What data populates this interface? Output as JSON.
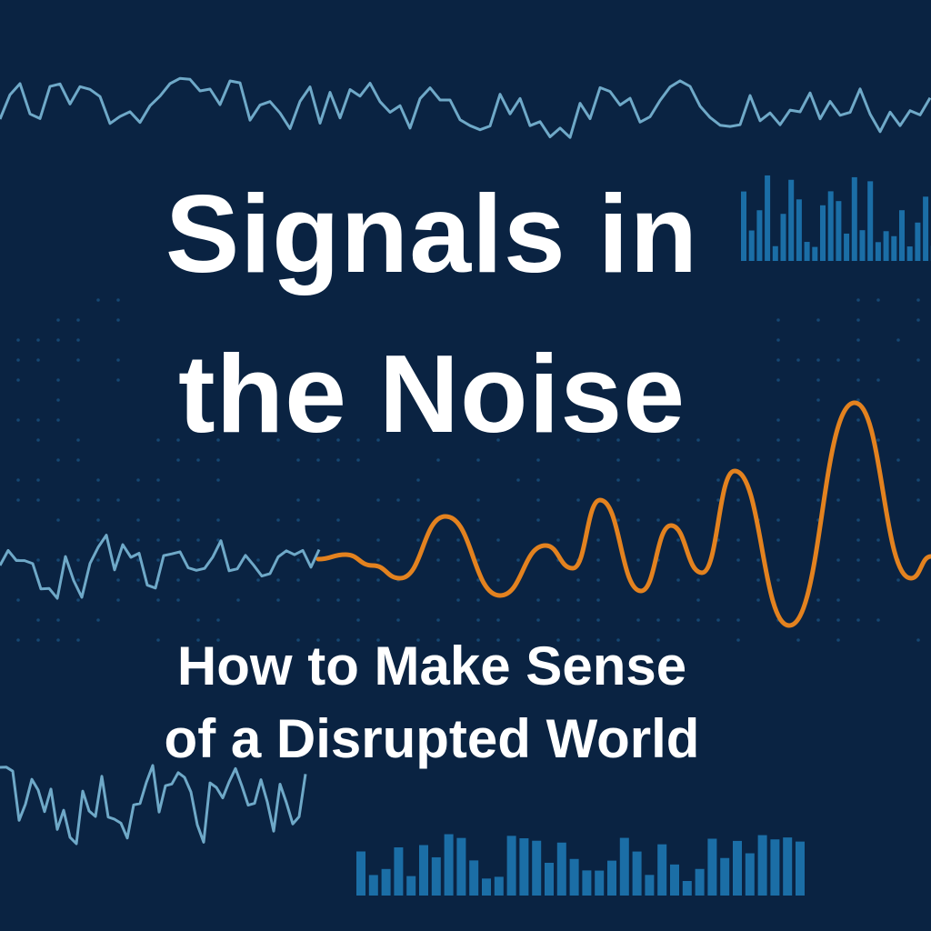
{
  "title": {
    "line1": "Signals in",
    "line2": "the Noise"
  },
  "subtitle": {
    "line1": "How to Make Sense",
    "line2": "of a Disrupted World"
  },
  "colors": {
    "background": "#0a2342",
    "noise_line": "#6fa9c8",
    "bars": "#1b6ea6",
    "signal_line": "#e3821f",
    "text": "#ffffff"
  }
}
